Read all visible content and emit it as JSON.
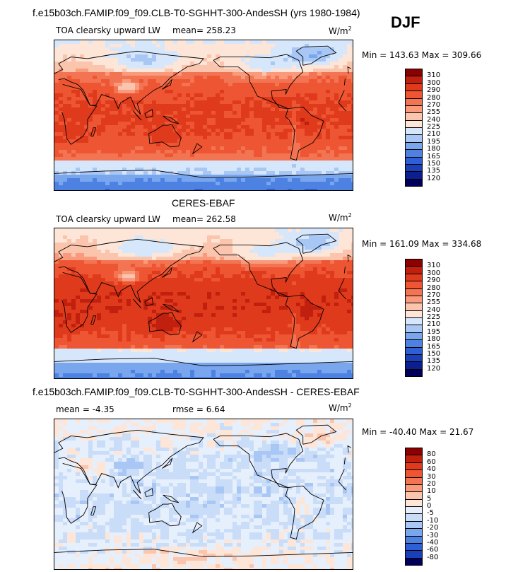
{
  "page": {
    "season": "DJF"
  },
  "panels": [
    {
      "heading": "f.e15b03ch.FAMIP.f09_f09.CLB-T0-SGHHT-300-AndesSH (yrs 1980-1984)",
      "variable": "TOA clearsky upward LW",
      "stat1": "mean= 258.23",
      "stat2": "",
      "units": "W/m",
      "units_exp": "2",
      "minmax": "Min = 143.63 Max = 309.66",
      "field": "model"
    },
    {
      "heading": "CERES-EBAF",
      "variable": "TOA clearsky upward LW",
      "stat1": "mean= 262.58",
      "stat2": "",
      "units": "W/m",
      "units_exp": "2",
      "minmax": "Min = 161.09 Max = 334.68",
      "field": "obs"
    },
    {
      "heading": "f.e15b03ch.FAMIP.f09_f09.CLB-T0-SGHHT-300-AndesSH - CERES-EBAF",
      "variable": "",
      "stat1": "mean =   -4.35",
      "stat2": "rmse =    6.64",
      "units": "W/m",
      "units_exp": "2",
      "minmax": "Min = -40.40 Max =  21.67",
      "field": "diff"
    }
  ],
  "chart_data": [
    {
      "type": "heatmap",
      "title": "TOA clearsky upward LW",
      "subtitle": "f.e15b03ch.FAMIP.f09_f09.CLB-T0-SGHHT-300-AndesSH (yrs 1980-1984)",
      "units": "W/m2",
      "mean": 258.23,
      "min": 143.63,
      "max": 309.66,
      "levels": [
        "310",
        "300",
        "290",
        "280",
        "270",
        "255",
        "240",
        "225",
        "210",
        "195",
        "180",
        "165",
        "150",
        "135",
        "120"
      ],
      "colors": [
        "#8b0000",
        "#c1200e",
        "#e03a1d",
        "#ee5532",
        "#f37452",
        "#f99a7c",
        "#fbc4ad",
        "#fde6d8",
        "#d6e6fb",
        "#a8c7f5",
        "#7aa6ee",
        "#4d82e3",
        "#2f5fd4",
        "#1b3fb8",
        "#0b1f8f",
        "#00005a"
      ]
    },
    {
      "type": "heatmap",
      "title": "TOA clearsky upward LW",
      "subtitle": "CERES-EBAF",
      "units": "W/m2",
      "mean": 262.58,
      "min": 161.09,
      "max": 334.68,
      "levels": [
        "310",
        "300",
        "290",
        "280",
        "270",
        "255",
        "240",
        "225",
        "210",
        "195",
        "180",
        "165",
        "150",
        "135",
        "120"
      ],
      "colors": [
        "#8b0000",
        "#c1200e",
        "#e03a1d",
        "#ee5532",
        "#f37452",
        "#f99a7c",
        "#fbc4ad",
        "#fde6d8",
        "#d6e6fb",
        "#a8c7f5",
        "#7aa6ee",
        "#4d82e3",
        "#2f5fd4",
        "#1b3fb8",
        "#0b1f8f",
        "#00005a"
      ]
    },
    {
      "type": "heatmap",
      "title": "",
      "subtitle": "f.e15b03ch.FAMIP.f09_f09.CLB-T0-SGHHT-300-AndesSH - CERES-EBAF",
      "units": "W/m2",
      "mean": -4.35,
      "rmse": 6.64,
      "min": -40.4,
      "max": 21.67,
      "levels": [
        "80",
        "60",
        "40",
        "30",
        "20",
        "10",
        "5",
        "0",
        "-5",
        "-10",
        "-20",
        "-30",
        "-40",
        "-60",
        "-80"
      ],
      "colors": [
        "#8b0000",
        "#c1200e",
        "#e03a1d",
        "#ee5532",
        "#f37452",
        "#f99a7c",
        "#fbc4ad",
        "#fde6d8",
        "#e6effc",
        "#c9dcf8",
        "#a8c7f5",
        "#7aa6ee",
        "#4d82e3",
        "#2f5fd4",
        "#1b3fb8",
        "#00005a"
      ]
    }
  ]
}
